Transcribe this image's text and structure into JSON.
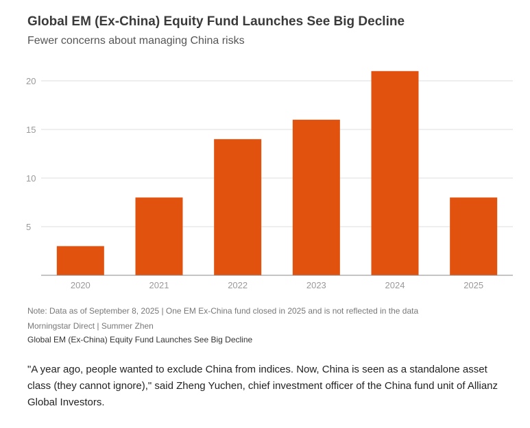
{
  "header": {
    "title": "Global EM (Ex-China) Equity Fund Launches See Big Decline",
    "subtitle": "Fewer concerns about managing China risks"
  },
  "footer": {
    "note": "Note: Data as of September 8, 2025 | One EM Ex-China fund closed in 2025 and is not reflected in the data",
    "source": "Morningstar Direct | Summer Zhen",
    "caption": "Global EM (Ex-China) Equity Fund Launches See Big Decline"
  },
  "article": {
    "quote": "\"A year ago, people wanted to exclude China from indices. Now, China is seen as a standalone asset class (they cannot ignore),\" said Zheng Yuchen, chief investment officer of the China fund unit of Allianz Global Investors."
  },
  "chart_data": {
    "type": "bar",
    "categories": [
      "2020",
      "2021",
      "2022",
      "2023",
      "2024",
      "2025"
    ],
    "values": [
      3,
      8,
      14,
      16,
      21,
      8
    ],
    "title": "Global EM (Ex-China) Equity Fund Launches See Big Decline",
    "subtitle": "Fewer concerns about managing China risks",
    "xlabel": "",
    "ylabel": "",
    "ylim": [
      0,
      20
    ],
    "yticks": [
      5,
      10,
      15,
      20
    ],
    "grid": true,
    "legend": "none",
    "colors": {
      "bar": "#e2520f",
      "grid": "#dddddd",
      "axis": "#888888",
      "tick_label": "#999999"
    }
  }
}
